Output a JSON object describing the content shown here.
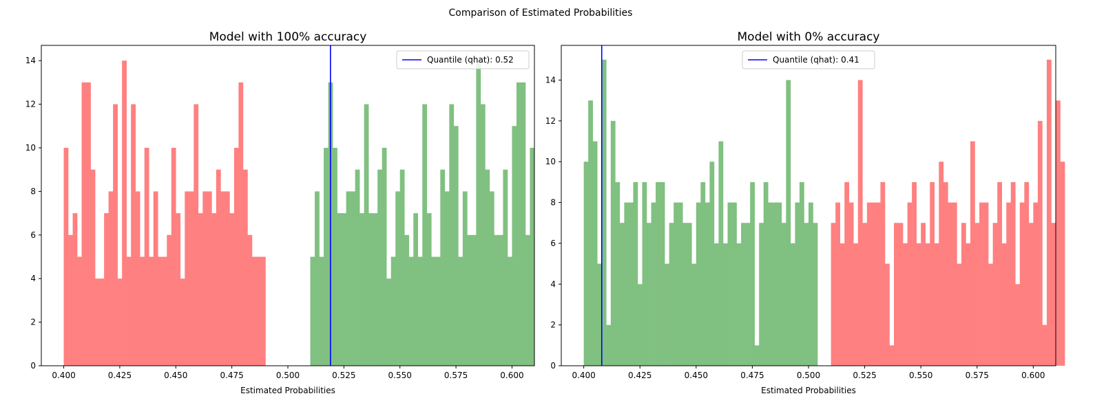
{
  "suptitle": "Comparison of Estimated Probabilities",
  "colors": {
    "red_bars": "#ff8080",
    "green_bars": "#80c080",
    "quantile_line": "#0000ff"
  },
  "chart_data": [
    {
      "type": "bar",
      "title": "Model with 100% accuracy",
      "xlabel": "Estimated Probabilities",
      "ylabel": "",
      "xlim": [
        0.39,
        0.61
      ],
      "ylim": [
        0,
        14.7
      ],
      "bin_width": 0.002,
      "xticks": [
        "0.400",
        "0.425",
        "0.450",
        "0.475",
        "0.500",
        "0.525",
        "0.550",
        "0.575",
        "0.600"
      ],
      "yticks": [
        "0",
        "2",
        "4",
        "6",
        "8",
        "10",
        "12",
        "14"
      ],
      "legend_position": "upper right",
      "series": [
        {
          "color": "red",
          "x_start": 0.4,
          "values": [
            10,
            6,
            7,
            5,
            13,
            13,
            9,
            4,
            4,
            7,
            8,
            12,
            4,
            14,
            5,
            12,
            8,
            5,
            10,
            5,
            8,
            5,
            5,
            6,
            10,
            7,
            4,
            8,
            8,
            12,
            7,
            8,
            8,
            7,
            9,
            8,
            8,
            7,
            10,
            13,
            9,
            6,
            5,
            5,
            5
          ]
        },
        {
          "color": "green",
          "x_start": 0.51,
          "values": [
            5,
            8,
            5,
            10,
            13,
            10,
            7,
            7,
            8,
            8,
            9,
            7,
            12,
            7,
            7,
            9,
            10,
            4,
            5,
            8,
            9,
            6,
            5,
            7,
            5,
            12,
            7,
            5,
            5,
            9,
            8,
            12,
            11,
            5,
            8,
            6,
            6,
            14,
            12,
            9,
            8,
            6,
            6,
            9,
            5,
            11,
            13,
            13,
            6,
            10
          ]
        }
      ],
      "quantile": {
        "value": 0.519,
        "label": "Quantile (qhat): 0.52"
      }
    },
    {
      "type": "bar",
      "title": "Model with 0% accuracy",
      "xlabel": "Estimated Probabilities",
      "ylabel": "",
      "xlim": [
        0.39,
        0.61
      ],
      "ylim": [
        0,
        15.7
      ],
      "bin_width": 0.002,
      "xticks": [
        "0.400",
        "0.425",
        "0.450",
        "0.475",
        "0.500",
        "0.525",
        "0.550",
        "0.575",
        "0.600"
      ],
      "yticks": [
        "0",
        "2",
        "4",
        "6",
        "8",
        "10",
        "12",
        "14"
      ],
      "legend_position": "upper center",
      "series": [
        {
          "color": "green",
          "x_start": 0.4,
          "values": [
            10,
            13,
            11,
            5,
            15,
            2,
            12,
            9,
            7,
            8,
            8,
            9,
            4,
            9,
            7,
            8,
            9,
            9,
            5,
            7,
            8,
            8,
            7,
            7,
            5,
            8,
            9,
            8,
            10,
            6,
            11,
            6,
            8,
            8,
            6,
            7,
            7,
            9,
            1,
            7,
            9,
            8,
            8,
            8,
            7,
            14,
            6,
            8,
            9,
            7,
            8,
            7
          ]
        },
        {
          "color": "red",
          "x_start": 0.51,
          "values": [
            7,
            8,
            6,
            9,
            8,
            6,
            14,
            7,
            8,
            8,
            8,
            9,
            5,
            1,
            7,
            7,
            6,
            8,
            9,
            6,
            7,
            6,
            9,
            6,
            10,
            9,
            8,
            8,
            5,
            7,
            6,
            11,
            7,
            8,
            8,
            5,
            7,
            9,
            6,
            8,
            9,
            4,
            8,
            9,
            7,
            8,
            12,
            2,
            15,
            7,
            13,
            10
          ]
        }
      ],
      "quantile": {
        "value": 0.408,
        "label": "Quantile (qhat): 0.41"
      }
    }
  ]
}
